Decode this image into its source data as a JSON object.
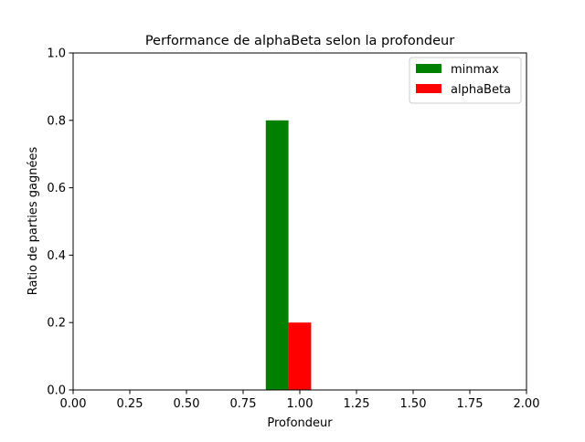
{
  "chart_data": {
    "type": "bar",
    "title": "Performance de alphaBeta selon la profondeur",
    "xlabel": "Profondeur",
    "ylabel": "Ratio de parties gagnées",
    "xlim": [
      0,
      2
    ],
    "ylim": [
      0,
      1
    ],
    "x_ticks": [
      "0.00",
      "0.25",
      "0.50",
      "0.75",
      "1.00",
      "1.25",
      "1.50",
      "1.75",
      "2.00"
    ],
    "y_ticks": [
      "0.0",
      "0.2",
      "0.4",
      "0.6",
      "0.8",
      "1.0"
    ],
    "bar_width": 0.1,
    "grid": false,
    "legend_position": "upper right",
    "series": [
      {
        "name": "minmax",
        "color": "#008000",
        "x": [
          0.9
        ],
        "values": [
          0.8
        ]
      },
      {
        "name": "alphaBeta",
        "color": "#ff0000",
        "x": [
          1.0
        ],
        "values": [
          0.2
        ]
      }
    ]
  }
}
